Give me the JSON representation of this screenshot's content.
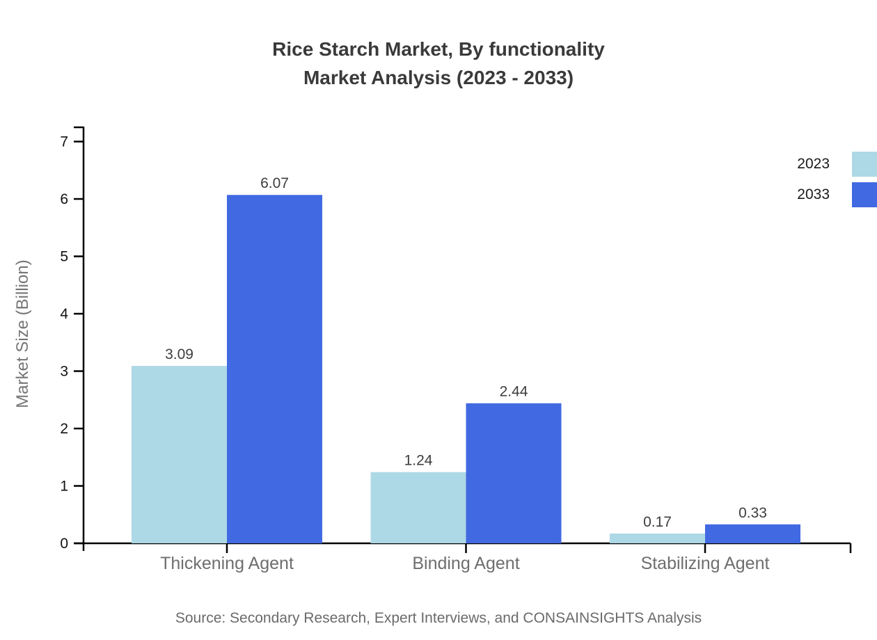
{
  "title": {
    "line1": "Rice Starch Market, By functionality",
    "line2": "Market Analysis (2023 - 2033)"
  },
  "source": "Source: Secondary Research, Expert Interviews, and CONSAINSIGHTS Analysis",
  "chart_data": {
    "type": "bar",
    "categories": [
      "Thickening Agent",
      "Binding Agent",
      "Stabilizing Agent"
    ],
    "series": [
      {
        "name": "2023",
        "color": "#add8e6",
        "values": [
          3.09,
          1.24,
          0.17
        ]
      },
      {
        "name": "2033",
        "color": "#4169e1",
        "values": [
          6.07,
          2.44,
          0.33
        ]
      }
    ],
    "ylabel": "Market Size (Billion)",
    "ylim": [
      0,
      7
    ],
    "yticks": [
      0,
      1,
      2,
      3,
      4,
      5,
      6,
      7
    ],
    "grid": false,
    "legend_position": "top-right",
    "value_labels": true,
    "colors": {
      "axis": "#000000",
      "tick_label_text": "#111111",
      "value_label_text": "#3d3d3d",
      "category_label_text": "#6e6e6e",
      "title_text": "#3a3a3a",
      "source_text": "#6a6a6a"
    }
  }
}
